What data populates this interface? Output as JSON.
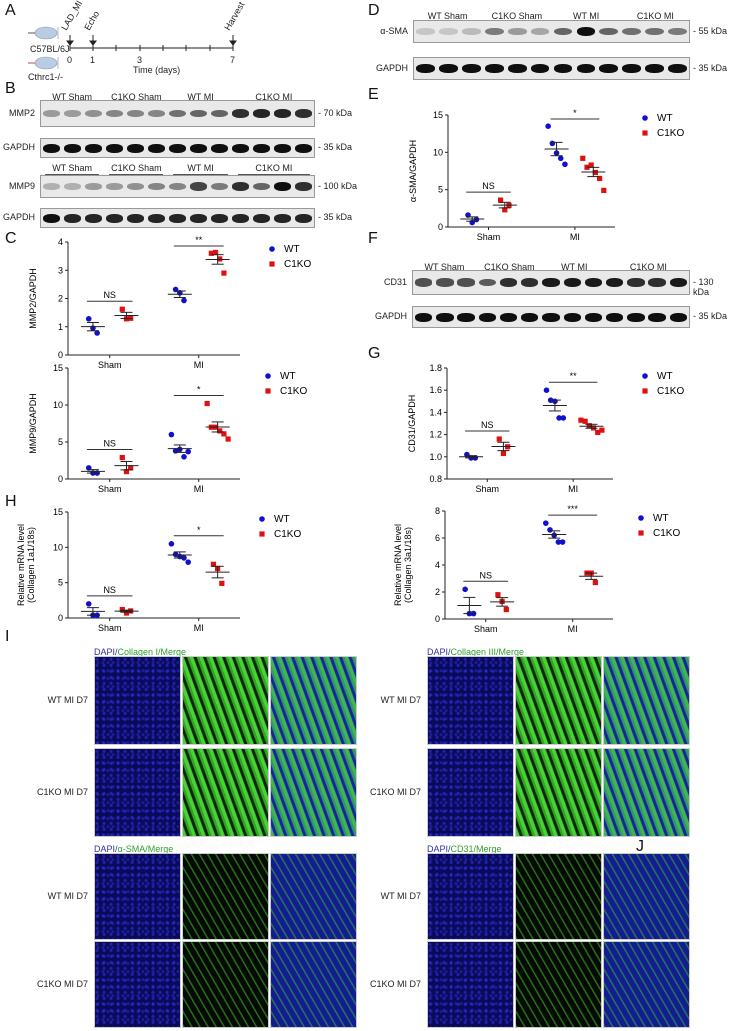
{
  "panels": {
    "A": "A",
    "B": "B",
    "C": "C",
    "D": "D",
    "E": "E",
    "F": "F",
    "G": "G",
    "H": "H",
    "I": "I",
    "J": "J"
  },
  "timeline": {
    "strains": [
      "C57BL/6J",
      "Cthrc1-/-"
    ],
    "events": [
      {
        "label": "LAD_MI",
        "day": 0
      },
      {
        "label": "Echo",
        "day": 1
      },
      {
        "label": "Harvest",
        "day": 7
      }
    ],
    "tick_labels": [
      "0",
      "1",
      "3",
      "7"
    ],
    "xlabel": "Time (days)"
  },
  "blots": {
    "B": {
      "groups": [
        "WT Sham",
        "C1KO Sham",
        "WT MI",
        "C1KO MI"
      ],
      "lanes": [
        3,
        3,
        3,
        4
      ],
      "rows": [
        {
          "label": "MMP2",
          "kda": "70 kDa"
        },
        {
          "label": "GAPDH",
          "kda": "35 kDa"
        },
        {
          "label": "MMP9",
          "kda": "100 kDa"
        },
        {
          "label": "GAPDH",
          "kda": "35 kDa"
        }
      ]
    },
    "D": {
      "groups": [
        "WT Sham",
        "C1KO Sham",
        "WT MI",
        "C1KO MI"
      ],
      "lanes": [
        3,
        3,
        3,
        3
      ],
      "rows": [
        {
          "label": "α-SMA",
          "kda": "55 kDa"
        },
        {
          "label": "GAPDH",
          "kda": "35 kDa"
        }
      ]
    },
    "F": {
      "groups": [
        "WT Sham",
        "C1KO Sham",
        "WT MI",
        "C1KO MI"
      ],
      "lanes": [
        3,
        3,
        3,
        4
      ],
      "rows": [
        {
          "label": "CD31",
          "kda": "130 kDa"
        },
        {
          "label": "GAPDH",
          "kda": "35 kDa"
        }
      ]
    }
  },
  "colors": {
    "WT": "#1010d0",
    "C1KO": "#e01010"
  },
  "chart_data": [
    {
      "id": "C1",
      "type": "scatter",
      "ylabel": "MMP2/GAPDH",
      "ylim": [
        0,
        4
      ],
      "yticks": [
        "0",
        "1",
        "2",
        "3",
        "4"
      ],
      "categories": [
        "Sham",
        "MI"
      ],
      "legend": [
        "WT",
        "C1KO"
      ],
      "significance": [
        "NS",
        "**"
      ],
      "series": [
        {
          "name": "WT",
          "values": {
            "Sham": [
              1.28,
              0.95,
              0.78
            ],
            "MI": [
              2.32,
              2.2,
              1.93
            ]
          }
        },
        {
          "name": "C1KO",
          "values": {
            "Sham": [
              1.62,
              1.28,
              1.3
            ],
            "MI": [
              3.6,
              3.63,
              3.4,
              2.9
            ]
          }
        }
      ]
    },
    {
      "id": "C2",
      "type": "scatter",
      "ylabel": "MMP9/GAPDH",
      "ylim": [
        0,
        15
      ],
      "yticks": [
        "0",
        "5",
        "10",
        "15"
      ],
      "categories": [
        "Sham",
        "MI"
      ],
      "legend": [
        "WT",
        "C1KO"
      ],
      "significance": [
        "NS",
        "*"
      ],
      "series": [
        {
          "name": "WT",
          "values": {
            "Sham": [
              1.5,
              0.8,
              0.8
            ],
            "MI": [
              6.0,
              3.8,
              4.0,
              3.0,
              3.7
            ]
          }
        },
        {
          "name": "C1KO",
          "values": {
            "Sham": [
              2.9,
              1.0,
              1.5
            ],
            "MI": [
              10.2,
              7.0,
              7.0,
              6.5,
              6.1,
              5.4
            ]
          }
        }
      ]
    },
    {
      "id": "H",
      "type": "scatter",
      "ylabel": "Relative mRNA level (Collagen 1a1/18s)",
      "ylim": [
        0,
        15
      ],
      "yticks": [
        "0",
        "5",
        "10",
        "15"
      ],
      "categories": [
        "Sham",
        "MI"
      ],
      "legend": [
        "WT",
        "C1KO"
      ],
      "significance": [
        "NS",
        "*"
      ],
      "series": [
        {
          "name": "WT",
          "values": {
            "Sham": [
              2.0,
              0.4,
              0.4
            ],
            "MI": [
              10.5,
              9.0,
              8.7,
              8.5,
              7.9
            ]
          }
        },
        {
          "name": "C1KO",
          "values": {
            "Sham": [
              1.2,
              0.7,
              1.0
            ],
            "MI": [
              7.6,
              7.0,
              4.9
            ]
          }
        }
      ]
    },
    {
      "id": "E",
      "type": "scatter",
      "ylabel": "α-SMA/GAPDH",
      "ylim": [
        0,
        15
      ],
      "yticks": [
        "0",
        "5",
        "10",
        "15"
      ],
      "categories": [
        "Sham",
        "MI"
      ],
      "legend": [
        "WT",
        "C1KO"
      ],
      "significance": [
        "NS",
        "*"
      ],
      "series": [
        {
          "name": "WT",
          "values": {
            "Sham": [
              1.6,
              0.6,
              1.0
            ],
            "MI": [
              13.5,
              11.2,
              9.9,
              9.2,
              8.4
            ]
          }
        },
        {
          "name": "C1KO",
          "values": {
            "Sham": [
              3.6,
              2.3,
              2.9
            ],
            "MI": [
              9.2,
              8.0,
              8.3,
              7.3,
              6.5,
              4.9
            ]
          }
        }
      ]
    },
    {
      "id": "G1",
      "type": "scatter",
      "ylabel": "CD31/GAPDH",
      "ylim": [
        0.8,
        1.8
      ],
      "yticks": [
        "0.8",
        "1.0",
        "1.2",
        "1.4",
        "1.6",
        "1.8"
      ],
      "categories": [
        "Sham",
        "MI"
      ],
      "legend": [
        "WT",
        "C1KO"
      ],
      "significance": [
        "NS",
        "**"
      ],
      "series": [
        {
          "name": "WT",
          "values": {
            "Sham": [
              1.02,
              0.99,
              0.99
            ],
            "MI": [
              1.6,
              1.51,
              1.5,
              1.35,
              1.35
            ]
          }
        },
        {
          "name": "C1KO",
          "values": {
            "Sham": [
              1.16,
              1.03,
              1.09
            ],
            "MI": [
              1.33,
              1.32,
              1.28,
              1.26,
              1.22,
              1.24
            ]
          }
        }
      ]
    },
    {
      "id": "G2",
      "type": "scatter",
      "ylabel": "Relative mRNA level (Collagen 3a1/18s)",
      "ylim": [
        0,
        8
      ],
      "yticks": [
        "0",
        "2",
        "4",
        "6",
        "8"
      ],
      "categories": [
        "Sham",
        "MI"
      ],
      "legend": [
        "WT",
        "C1KO"
      ],
      "significance": [
        "NS",
        "***"
      ],
      "series": [
        {
          "name": "WT",
          "values": {
            "Sham": [
              2.2,
              0.4,
              0.4
            ],
            "MI": [
              7.1,
              6.6,
              6.2,
              5.7,
              5.7
            ]
          }
        },
        {
          "name": "C1KO",
          "values": {
            "Sham": [
              1.8,
              1.3,
              0.7
            ],
            "MI": [
              3.4,
              3.4,
              2.7
            ]
          }
        }
      ]
    }
  ],
  "microscopy": {
    "I_top": {
      "title_prefix": "DAPI/",
      "title_marker": "Collagen I",
      "title_suffix": "/Merge",
      "rows": [
        "WT MI D7",
        "C1KO MI D7"
      ]
    },
    "I_right": {
      "title_prefix": "DAPI/",
      "title_marker": "Collagen III",
      "title_suffix": "/Merge",
      "rows": [
        "WT MI D7",
        "C1KO MI D7"
      ]
    },
    "I_bottom": {
      "title_prefix": "DAPI/",
      "title_marker": "α-SMA",
      "title_suffix": "/Merge",
      "rows": [
        "WT MI D7",
        "C1KO MI D7"
      ]
    },
    "J": {
      "title_prefix": "DAPI/",
      "title_marker": "CD31",
      "title_suffix": "/Merge",
      "rows": [
        "WT MI D7",
        "C1KO MI D7"
      ]
    }
  }
}
